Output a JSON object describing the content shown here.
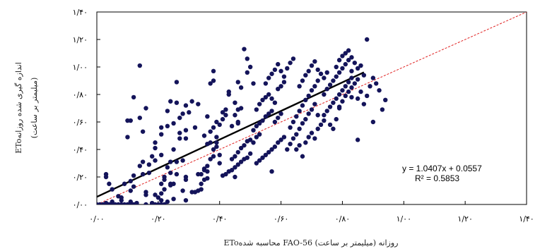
{
  "chart_data": {
    "type": "scatter",
    "xlabel": "EToمحاسبه شده FAO-56 روزانه (میلیمتر بر ساعت)",
    "ylabel_line1": "EToاندازه گیری شده روزانه",
    "ylabel_line2": "(میلیمتر بر ساعت)",
    "xlim": [
      0,
      1.4
    ],
    "ylim": [
      0,
      1.4
    ],
    "x_ticks": [
      0,
      0.2,
      0.4,
      0.6,
      0.8,
      1.0,
      1.2,
      1.4
    ],
    "y_ticks": [
      0,
      0.2,
      0.4,
      0.6,
      0.8,
      1.0,
      1.2,
      1.4
    ],
    "x_tick_labels": [
      "۰/۰۰",
      "۰/۲۰",
      "۰/۴۰",
      "۰/۶۰",
      "۰/۸۰",
      "۱/۰۰",
      "۱/۲۰",
      "۱/۴۰"
    ],
    "y_tick_labels": [
      "۰/۰۰",
      "۰/۲۰",
      "۰/۴۰",
      "۰/۶۰",
      "۰/۸۰",
      "۱/۰۰",
      "۱/۲۰",
      "۱/۴۰"
    ],
    "grid": false,
    "equation": "y = 1.0407x + 0.0557",
    "r_squared": "R² = 0.5853",
    "trendline": {
      "slope": 1.0407,
      "intercept": 0.0557,
      "x_range": [
        0,
        0.87
      ],
      "color": "#000000"
    },
    "reference_line": {
      "slope": 1,
      "intercept": 0,
      "style": "dashed",
      "color": "#e02020"
    },
    "point_color": "#14145a",
    "points": [
      [
        0.0,
        0.0
      ],
      [
        0.01,
        0.0
      ],
      [
        0.02,
        0.0
      ],
      [
        0.03,
        0.0
      ],
      [
        0.04,
        0.0
      ],
      [
        0.05,
        0.0
      ],
      [
        0.06,
        0.0
      ],
      [
        0.07,
        0.0
      ],
      [
        0.08,
        0.0
      ],
      [
        0.09,
        0.0
      ],
      [
        0.1,
        0.0
      ],
      [
        0.11,
        0.0
      ],
      [
        0.12,
        0.0
      ],
      [
        0.13,
        0.0
      ],
      [
        0.16,
        0.0
      ],
      [
        0.18,
        0.0
      ],
      [
        0.19,
        0.0
      ],
      [
        0.2,
        0.0
      ],
      [
        0.21,
        0.0
      ],
      [
        0.22,
        0.0
      ],
      [
        0.03,
        0.01
      ],
      [
        0.05,
        0.02
      ],
      [
        0.08,
        0.03
      ],
      [
        0.11,
        0.02
      ],
      [
        0.13,
        0.01
      ],
      [
        0.18,
        0.01
      ],
      [
        0.21,
        0.03
      ],
      [
        0.23,
        0.02
      ],
      [
        0.25,
        0.04
      ],
      [
        0.29,
        0.03
      ],
      [
        0.03,
        0.22
      ],
      [
        0.03,
        0.2
      ],
      [
        0.04,
        0.15
      ],
      [
        0.05,
        0.11
      ],
      [
        0.07,
        0.06
      ],
      [
        0.08,
        0.05
      ],
      [
        0.11,
        0.1
      ],
      [
        0.12,
        0.13
      ],
      [
        0.16,
        0.09
      ],
      [
        0.16,
        0.07
      ],
      [
        0.09,
        0.15
      ],
      [
        0.11,
        0.17
      ],
      [
        0.12,
        0.21
      ],
      [
        0.14,
        0.28
      ],
      [
        0.15,
        0.31
      ],
      [
        0.17,
        0.29
      ],
      [
        0.17,
        0.23
      ],
      [
        0.18,
        0.35
      ],
      [
        0.19,
        0.32
      ],
      [
        0.21,
        0.36
      ],
      [
        0.15,
        0.22
      ],
      [
        0.1,
        0.61
      ],
      [
        0.11,
        0.61
      ],
      [
        0.1,
        0.49
      ],
      [
        0.15,
        0.53
      ],
      [
        0.12,
        0.78
      ],
      [
        0.14,
        0.63
      ],
      [
        0.21,
        0.56
      ],
      [
        0.16,
        0.7
      ],
      [
        0.14,
        1.01
      ],
      [
        0.19,
        0.07
      ],
      [
        0.2,
        0.05
      ],
      [
        0.21,
        0.08
      ],
      [
        0.22,
        0.11
      ],
      [
        0.21,
        0.15
      ],
      [
        0.22,
        0.18
      ],
      [
        0.22,
        0.2
      ],
      [
        0.24,
        0.14
      ],
      [
        0.24,
        0.23
      ],
      [
        0.24,
        0.15
      ],
      [
        0.23,
        0.27
      ],
      [
        0.24,
        0.31
      ],
      [
        0.25,
        0.4
      ],
      [
        0.26,
        0.31
      ],
      [
        0.26,
        0.22
      ],
      [
        0.25,
        0.15
      ],
      [
        0.28,
        0.1
      ],
      [
        0.29,
        0.18
      ],
      [
        0.29,
        0.2
      ],
      [
        0.28,
        0.32
      ],
      [
        0.19,
        0.41
      ],
      [
        0.19,
        0.45
      ],
      [
        0.21,
        0.51
      ],
      [
        0.23,
        0.57
      ],
      [
        0.23,
        0.68
      ],
      [
        0.25,
        0.59
      ],
      [
        0.27,
        0.52
      ],
      [
        0.27,
        0.48
      ],
      [
        0.29,
        0.48
      ],
      [
        0.29,
        0.54
      ],
      [
        0.24,
        0.75
      ],
      [
        0.26,
        0.74
      ],
      [
        0.27,
        0.63
      ],
      [
        0.28,
        0.66
      ],
      [
        0.3,
        0.67
      ],
      [
        0.31,
        0.75
      ],
      [
        0.32,
        0.56
      ],
      [
        0.29,
        0.72
      ],
      [
        0.26,
        0.89
      ],
      [
        0.33,
        0.73
      ],
      [
        0.31,
        0.09
      ],
      [
        0.32,
        0.09
      ],
      [
        0.33,
        0.1
      ],
      [
        0.34,
        0.11
      ],
      [
        0.34,
        0.15
      ],
      [
        0.35,
        0.18
      ],
      [
        0.33,
        0.22
      ],
      [
        0.34,
        0.22
      ],
      [
        0.35,
        0.25
      ],
      [
        0.36,
        0.19
      ],
      [
        0.36,
        0.24
      ],
      [
        0.36,
        0.28
      ],
      [
        0.37,
        0.33
      ],
      [
        0.38,
        0.35
      ],
      [
        0.38,
        0.4
      ],
      [
        0.39,
        0.45
      ],
      [
        0.39,
        0.49
      ],
      [
        0.39,
        0.42
      ],
      [
        0.4,
        0.36
      ],
      [
        0.4,
        0.3
      ],
      [
        0.36,
        0.44
      ],
      [
        0.37,
        0.45
      ],
      [
        0.37,
        0.53
      ],
      [
        0.35,
        0.5
      ],
      [
        0.38,
        0.56
      ],
      [
        0.39,
        0.6
      ],
      [
        0.4,
        0.58
      ],
      [
        0.41,
        0.62
      ],
      [
        0.42,
        0.65
      ],
      [
        0.42,
        0.69
      ],
      [
        0.36,
        0.64
      ],
      [
        0.41,
        0.67
      ],
      [
        0.45,
        0.74
      ],
      [
        0.43,
        0.8
      ],
      [
        0.45,
        0.65
      ],
      [
        0.46,
        0.59
      ],
      [
        0.44,
        0.57
      ],
      [
        0.46,
        0.6
      ],
      [
        0.46,
        0.69
      ],
      [
        0.47,
        0.7
      ],
      [
        0.37,
        0.88
      ],
      [
        0.38,
        0.9
      ],
      [
        0.38,
        0.97
      ],
      [
        0.43,
        0.82
      ],
      [
        0.47,
        0.85
      ],
      [
        0.46,
        0.89
      ],
      [
        0.49,
        0.96
      ],
      [
        0.5,
        1.0
      ],
      [
        0.49,
        1.06
      ],
      [
        0.51,
        0.88
      ],
      [
        0.41,
        0.21
      ],
      [
        0.42,
        0.22
      ],
      [
        0.43,
        0.24
      ],
      [
        0.44,
        0.25
      ],
      [
        0.45,
        0.27
      ],
      [
        0.46,
        0.29
      ],
      [
        0.47,
        0.31
      ],
      [
        0.48,
        0.33
      ],
      [
        0.49,
        0.34
      ],
      [
        0.5,
        0.37
      ],
      [
        0.44,
        0.33
      ],
      [
        0.45,
        0.35
      ],
      [
        0.46,
        0.38
      ],
      [
        0.47,
        0.41
      ],
      [
        0.48,
        0.43
      ],
      [
        0.49,
        0.46
      ],
      [
        0.5,
        0.47
      ],
      [
        0.51,
        0.45
      ],
      [
        0.52,
        0.49
      ],
      [
        0.53,
        0.51
      ],
      [
        0.52,
        0.3
      ],
      [
        0.53,
        0.32
      ],
      [
        0.54,
        0.34
      ],
      [
        0.55,
        0.36
      ],
      [
        0.56,
        0.38
      ],
      [
        0.57,
        0.4
      ],
      [
        0.58,
        0.42
      ],
      [
        0.59,
        0.45
      ],
      [
        0.6,
        0.47
      ],
      [
        0.61,
        0.49
      ],
      [
        0.51,
        0.54
      ],
      [
        0.52,
        0.57
      ],
      [
        0.53,
        0.59
      ],
      [
        0.54,
        0.61
      ],
      [
        0.55,
        0.64
      ],
      [
        0.56,
        0.66
      ],
      [
        0.57,
        0.68
      ],
      [
        0.58,
        0.6
      ],
      [
        0.59,
        0.63
      ],
      [
        0.6,
        0.66
      ],
      [
        0.52,
        0.69
      ],
      [
        0.53,
        0.73
      ],
      [
        0.54,
        0.76
      ],
      [
        0.55,
        0.78
      ],
      [
        0.56,
        0.8
      ],
      [
        0.57,
        0.77
      ],
      [
        0.58,
        0.74
      ],
      [
        0.59,
        0.84
      ],
      [
        0.6,
        0.86
      ],
      [
        0.61,
        0.89
      ],
      [
        0.55,
        0.88
      ],
      [
        0.56,
        0.92
      ],
      [
        0.57,
        0.95
      ],
      [
        0.58,
        0.98
      ],
      [
        0.59,
        1.02
      ],
      [
        0.6,
        0.97
      ],
      [
        0.61,
        0.93
      ],
      [
        0.62,
        0.99
      ],
      [
        0.63,
        1.03
      ],
      [
        0.64,
        1.06
      ],
      [
        0.62,
        0.4
      ],
      [
        0.63,
        0.44
      ],
      [
        0.64,
        0.48
      ],
      [
        0.65,
        0.51
      ],
      [
        0.66,
        0.55
      ],
      [
        0.67,
        0.59
      ],
      [
        0.68,
        0.62
      ],
      [
        0.69,
        0.66
      ],
      [
        0.7,
        0.69
      ],
      [
        0.71,
        0.73
      ],
      [
        0.63,
        0.56
      ],
      [
        0.64,
        0.6
      ],
      [
        0.65,
        0.64
      ],
      [
        0.66,
        0.68
      ],
      [
        0.67,
        0.72
      ],
      [
        0.68,
        0.76
      ],
      [
        0.69,
        0.79
      ],
      [
        0.7,
        0.83
      ],
      [
        0.71,
        0.86
      ],
      [
        0.72,
        0.9
      ],
      [
        0.65,
        0.4
      ],
      [
        0.66,
        0.43
      ],
      [
        0.67,
        0.35
      ],
      [
        0.68,
        0.45
      ],
      [
        0.69,
        0.49
      ],
      [
        0.7,
        0.52
      ],
      [
        0.71,
        0.48
      ],
      [
        0.72,
        0.55
      ],
      [
        0.73,
        0.58
      ],
      [
        0.74,
        0.61
      ],
      [
        0.66,
        0.86
      ],
      [
        0.67,
        0.9
      ],
      [
        0.68,
        0.94
      ],
      [
        0.69,
        0.97
      ],
      [
        0.7,
        1.01
      ],
      [
        0.71,
        1.04
      ],
      [
        0.72,
        0.98
      ],
      [
        0.73,
        0.95
      ],
      [
        0.74,
        0.92
      ],
      [
        0.75,
        0.96
      ],
      [
        0.74,
        0.65
      ],
      [
        0.75,
        0.68
      ],
      [
        0.76,
        0.71
      ],
      [
        0.77,
        0.74
      ],
      [
        0.78,
        0.77
      ],
      [
        0.79,
        0.8
      ],
      [
        0.8,
        0.83
      ],
      [
        0.81,
        0.86
      ],
      [
        0.82,
        0.89
      ],
      [
        0.83,
        0.92
      ],
      [
        0.74,
        0.8
      ],
      [
        0.75,
        0.84
      ],
      [
        0.76,
        0.87
      ],
      [
        0.77,
        0.9
      ],
      [
        0.78,
        0.93
      ],
      [
        0.79,
        0.96
      ],
      [
        0.8,
        0.99
      ],
      [
        0.81,
        1.02
      ],
      [
        0.82,
        1.05
      ],
      [
        0.83,
        0.97
      ],
      [
        0.76,
        0.58
      ],
      [
        0.77,
        0.55
      ],
      [
        0.78,
        0.62
      ],
      [
        0.79,
        0.7
      ],
      [
        0.8,
        0.75
      ],
      [
        0.81,
        0.79
      ],
      [
        0.82,
        0.82
      ],
      [
        0.83,
        0.85
      ],
      [
        0.84,
        0.88
      ],
      [
        0.85,
        0.91
      ],
      [
        0.78,
        1.0
      ],
      [
        0.79,
        1.05
      ],
      [
        0.8,
        1.08
      ],
      [
        0.81,
        1.1
      ],
      [
        0.82,
        1.12
      ],
      [
        0.83,
        1.07
      ],
      [
        0.84,
        1.03
      ],
      [
        0.85,
        0.99
      ],
      [
        0.86,
        1.01
      ],
      [
        0.87,
        0.94
      ],
      [
        0.85,
        0.77
      ],
      [
        0.86,
        0.82
      ],
      [
        0.87,
        0.73
      ],
      [
        0.88,
        0.79
      ],
      [
        0.89,
        0.86
      ],
      [
        0.9,
        0.92
      ],
      [
        0.91,
        0.88
      ],
      [
        0.92,
        0.83
      ],
      [
        0.93,
        0.69
      ],
      [
        0.94,
        0.76
      ],
      [
        0.88,
        1.2
      ],
      [
        0.9,
        0.6
      ],
      [
        0.85,
        0.47
      ],
      [
        0.48,
        1.13
      ],
      [
        0.35,
        0.26
      ],
      [
        0.45,
        0.2
      ],
      [
        0.57,
        0.24
      ],
      [
        0.72,
        0.65
      ],
      [
        0.79,
        0.71
      ],
      [
        0.83,
        0.78
      ]
    ]
  }
}
